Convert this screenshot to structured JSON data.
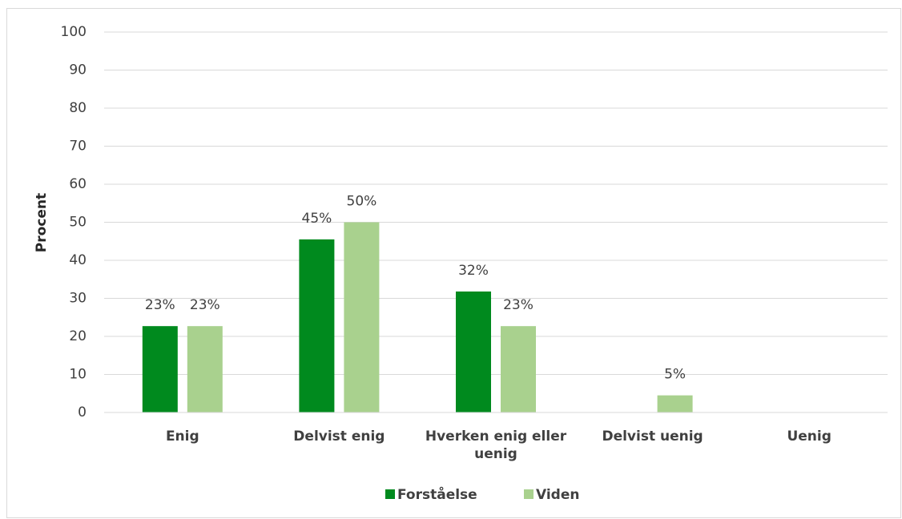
{
  "chart_data": {
    "type": "bar",
    "categories": [
      "Enig",
      "Delvist enig",
      "Hverken enig eller uenig",
      "Delvist uenig",
      "Uenig"
    ],
    "series": [
      {
        "name": "Forståelse",
        "color": "#008a1e",
        "values": [
          22.7,
          45.5,
          31.8,
          null,
          null
        ],
        "value_labels": [
          "23%",
          "45%",
          "32%",
          null,
          null
        ]
      },
      {
        "name": "Viden",
        "color": "#a9d18e",
        "values": [
          22.7,
          50,
          22.7,
          4.5,
          null
        ],
        "value_labels": [
          "23%",
          "50%",
          "23%",
          "5%",
          null
        ]
      }
    ],
    "ylabel": "Procent",
    "ylim": [
      0,
      100
    ],
    "yticks": [
      0,
      10,
      20,
      30,
      40,
      50,
      60,
      70,
      80,
      90,
      100
    ],
    "grid": true,
    "legend": "bottom"
  }
}
